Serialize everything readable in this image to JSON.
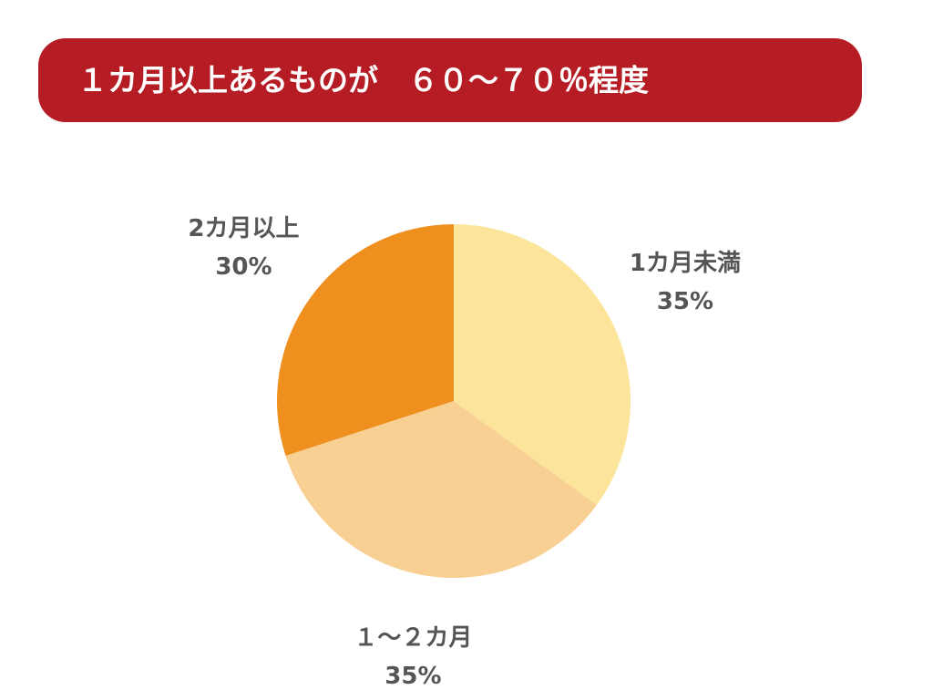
{
  "chart_data": {
    "type": "pie",
    "title": "１カ月以上あるものが　６０～７０％程度",
    "categories": [
      "1カ月未満",
      "１～２カ月",
      "2カ月以上"
    ],
    "values": [
      35,
      35,
      30
    ],
    "value_labels": [
      "35%",
      "35%",
      "30%"
    ],
    "colors": [
      "#fde49b",
      "#f8d093",
      "#ee8f1e"
    ]
  }
}
